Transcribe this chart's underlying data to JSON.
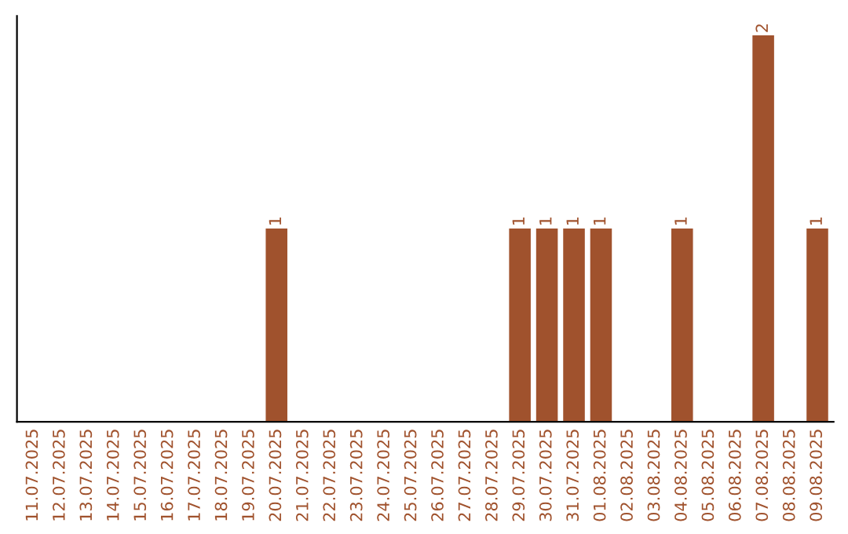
{
  "chart_data": {
    "type": "bar",
    "categories": [
      "11.07.2025",
      "12.07.2025",
      "13.07.2025",
      "14.07.2025",
      "15.07.2025",
      "16.07.2025",
      "17.07.2025",
      "18.07.2025",
      "19.07.2025",
      "20.07.2025",
      "21.07.2025",
      "22.07.2025",
      "23.07.2025",
      "24.07.2025",
      "25.07.2025",
      "26.07.2025",
      "27.07.2025",
      "28.07.2025",
      "29.07.2025",
      "30.07.2025",
      "31.07.2025",
      "01.08.2025",
      "02.08.2025",
      "03.08.2025",
      "04.08.2025",
      "05.08.2025",
      "06.08.2025",
      "07.08.2025",
      "08.08.2025",
      "09.08.2025"
    ],
    "values": [
      0,
      0,
      0,
      0,
      0,
      0,
      0,
      0,
      0,
      1,
      0,
      0,
      0,
      0,
      0,
      0,
      0,
      0,
      1,
      1,
      1,
      1,
      0,
      0,
      1,
      0,
      0,
      2,
      0,
      1
    ],
    "value_labels": [
      null,
      null,
      null,
      null,
      null,
      null,
      null,
      null,
      null,
      "1",
      null,
      null,
      null,
      null,
      null,
      null,
      null,
      null,
      "1",
      "1",
      "1",
      "1",
      null,
      null,
      "1",
      null,
      null,
      "2",
      null,
      "1"
    ],
    "color": "#a0522d",
    "tick_labels": "x",
    "grid": false,
    "legend": false
  }
}
